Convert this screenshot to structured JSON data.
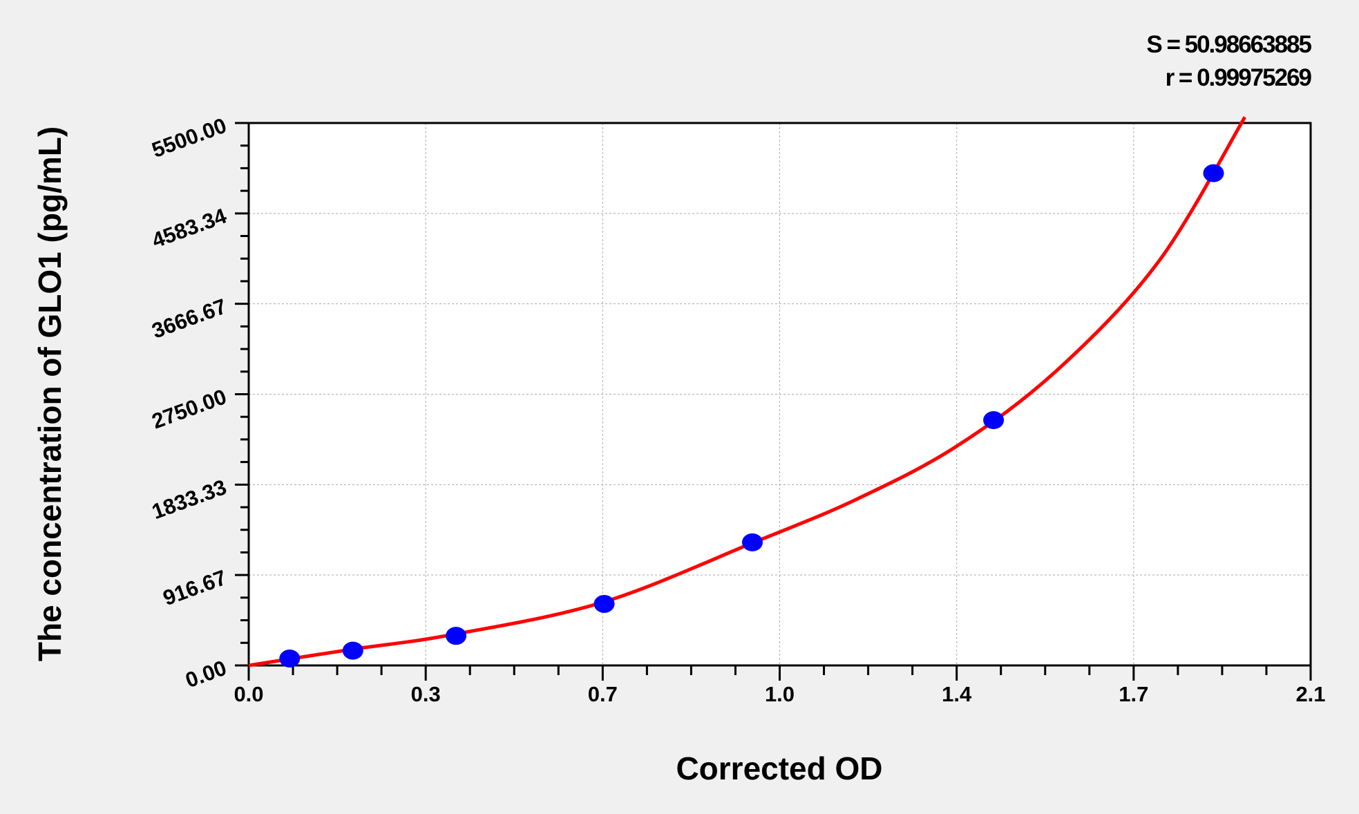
{
  "chart_data": {
    "type": "scatter",
    "title": "",
    "xlabel": "Corrected OD",
    "ylabel": "The concentration of GLO1 (pg/mL)",
    "xlim": [
      0,
      2.1
    ],
    "ylim": [
      0,
      5500
    ],
    "x_ticks": [
      0,
      0.35,
      0.7,
      1.05,
      1.4,
      1.75,
      2.1
    ],
    "x_tick_labels": [
      "0.0",
      "0.3",
      "0.7",
      "1.0",
      "1.4",
      "1.7",
      "2.1"
    ],
    "y_ticks": [
      0,
      916.67,
      1833.33,
      2750,
      3666.67,
      4583.34,
      5500
    ],
    "y_tick_labels": [
      "0.00",
      "916.67",
      "1833.33",
      "2750.00",
      "3666.67",
      "4583.34",
      "5500.00"
    ],
    "minor_subdivisions": 4,
    "grid": true,
    "annotations": [
      "S = 50.98663885",
      "r = 0.99975269"
    ],
    "points": {
      "x": [
        0.081,
        0.206,
        0.41,
        0.703,
        0.996,
        1.473,
        1.908
      ],
      "y": [
        70,
        150,
        300,
        624,
        1248,
        2487,
        4991
      ],
      "color": "#0000ff"
    },
    "fit_curve": {
      "x": [
        0,
        0.2,
        0.4,
        0.7,
        1.0,
        1.2,
        1.4,
        1.6,
        1.8,
        1.97
      ],
      "y": [
        0,
        160,
        310,
        640,
        1250,
        1680,
        2223,
        3000,
        4100,
        5560
      ],
      "color": "#ff0000"
    }
  }
}
